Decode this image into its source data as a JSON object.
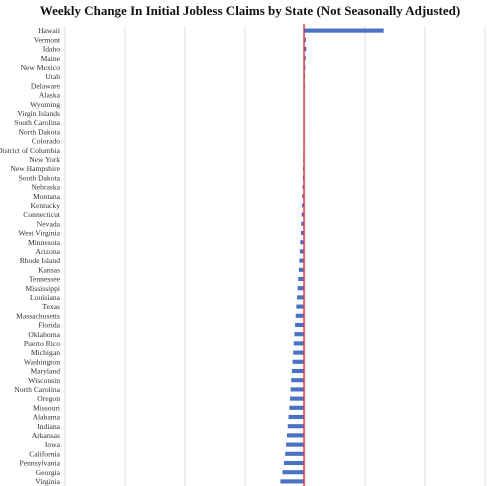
{
  "chart_data": {
    "type": "bar",
    "orientation": "horizontal",
    "title": "Weekly Change In Initial Jobless Claims by State (Not Seasonally Adjusted)",
    "xlabel": "",
    "ylabel": "",
    "xlim": [
      -15000,
      6000
    ],
    "grid": "vertical",
    "bar_color": "#4a72c4",
    "zero_line_color": "#e0393e",
    "categories": [
      "Hawaii",
      "Vermont",
      "Idaho",
      "Maine",
      "New Mexico",
      "Utah",
      "Delaware",
      "Alaska",
      "Wyoming",
      "Virgin Islands",
      "South Carolina",
      "North Dakota",
      "Colorado",
      "District of Columbia",
      "New York",
      "New Hampshire",
      "South Dakota",
      "Nebraska",
      "Montana",
      "Kentucky",
      "Connecticut",
      "Nevada",
      "West Virginia",
      "Minnesota",
      "Arizona",
      "Rhode Island",
      "Kansas",
      "Tennessee",
      "Mississippi",
      "Louisiana",
      "Texas",
      "Massachusetts",
      "Florida",
      "Oklahoma",
      "Puerto Rico",
      "Michigan",
      "Washington",
      "Maryland",
      "Wisconsin",
      "North Carolina",
      "Oregon",
      "Missouri",
      "Alabama",
      "Indiana",
      "Arkansas",
      "Iowa",
      "California",
      "Pennsylvania",
      "Georgia",
      "Virginia"
    ],
    "values": [
      5000,
      120,
      150,
      110,
      80,
      60,
      50,
      30,
      15,
      10,
      5,
      0,
      -5,
      -20,
      -40,
      -60,
      -70,
      -90,
      -110,
      -130,
      -150,
      -170,
      -190,
      -230,
      -260,
      -290,
      -320,
      -360,
      -400,
      -440,
      -480,
      -520,
      -560,
      -600,
      -640,
      -680,
      -720,
      -760,
      -800,
      -840,
      -880,
      -920,
      -970,
      -1020,
      -1070,
      -1120,
      -1180,
      -1260,
      -1350,
      -1480
    ]
  }
}
